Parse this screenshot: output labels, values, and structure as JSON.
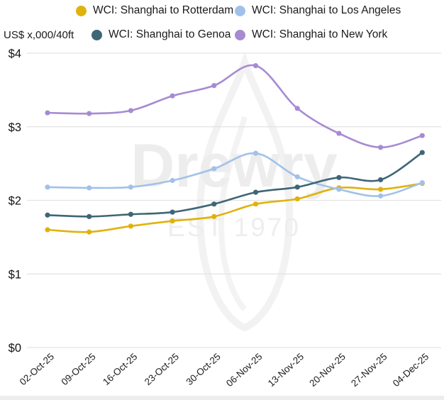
{
  "unit_label": "US$ x,000/40ft",
  "watermark": {
    "name": "Drewry",
    "est": "EST 1970"
  },
  "legend": {
    "items": [
      {
        "label": "WCI: Shanghai to Rotterdam",
        "color": "#E0B20C"
      },
      {
        "label": "WCI: Shanghai to Los Angeles",
        "color": "#A2C1E9"
      },
      {
        "label": "WCI: Shanghai to Genoa",
        "color": "#3E6677"
      },
      {
        "label": "WCI: Shanghai to New York",
        "color": "#A78BD2"
      }
    ]
  },
  "chart_data": {
    "type": "line",
    "title": "",
    "ylabel": "US$ x,000/40ft",
    "xlabel": "",
    "ylim": [
      0,
      4
    ],
    "grid": "horizontal",
    "legend_position": "top",
    "y_ticks": [
      {
        "label": "$4",
        "value": 4
      },
      {
        "label": "$3",
        "value": 3
      },
      {
        "label": "$2",
        "value": 2
      },
      {
        "label": "$1",
        "value": 1
      },
      {
        "label": "$0",
        "value": 0
      }
    ],
    "categories": [
      "02-Oct-25",
      "09-Oct-25",
      "16-Oct-25",
      "23-Oct-25",
      "30-Oct-25",
      "06-Nov-25",
      "13-Nov-25",
      "20-Nov-25",
      "27-Nov-25",
      "04-Dec-25"
    ],
    "series": [
      {
        "name": "WCI: Shanghai to Rotterdam",
        "color": "#E0B20C",
        "values": [
          1.6,
          1.57,
          1.65,
          1.72,
          1.78,
          1.95,
          2.02,
          2.17,
          2.15,
          2.23
        ]
      },
      {
        "name": "WCI: Shanghai to Los Angeles",
        "color": "#A2C1E9",
        "values": [
          2.18,
          2.17,
          2.18,
          2.27,
          2.43,
          2.64,
          2.32,
          2.15,
          2.06,
          2.24
        ]
      },
      {
        "name": "WCI: Shanghai to Genoa",
        "color": "#3E6677",
        "values": [
          1.8,
          1.78,
          1.81,
          1.84,
          1.95,
          2.11,
          2.18,
          2.31,
          2.28,
          2.65
        ]
      },
      {
        "name": "WCI: Shanghai to New York",
        "color": "#A78BD2",
        "values": [
          3.19,
          3.18,
          3.22,
          3.42,
          3.56,
          3.83,
          3.25,
          2.91,
          2.72,
          2.88
        ]
      }
    ]
  }
}
